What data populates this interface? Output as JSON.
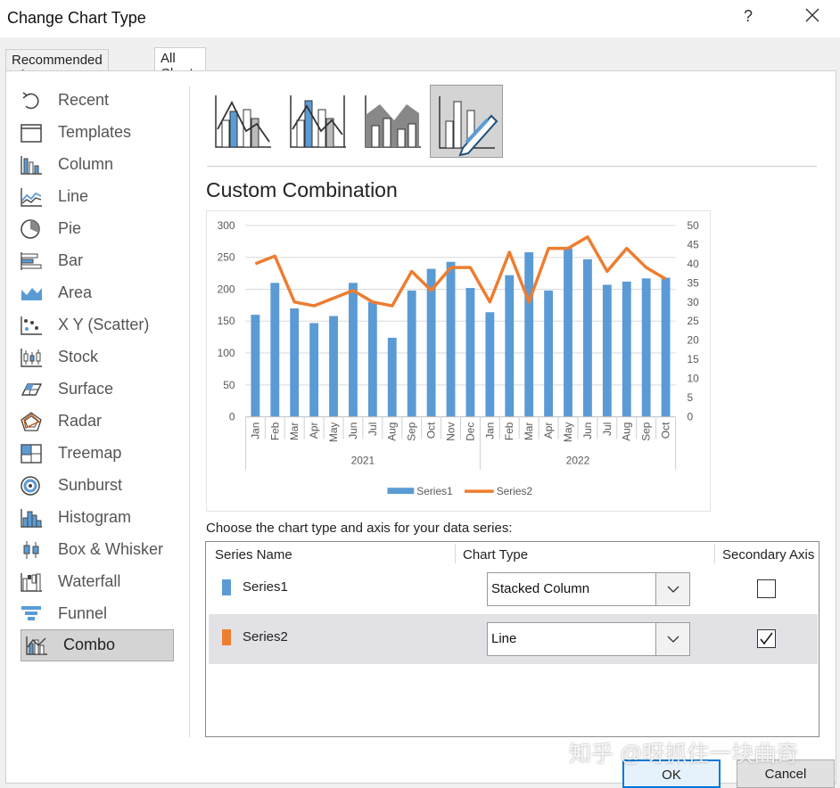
{
  "window": {
    "title": "Change Chart Type",
    "help": "?"
  },
  "tabs": [
    {
      "label": "Recommended Charts"
    },
    {
      "label": "All Charts"
    }
  ],
  "sidebar": {
    "items": [
      {
        "label": "Recent",
        "icon": "recent-icon"
      },
      {
        "label": "Templates",
        "icon": "templates-icon"
      },
      {
        "label": "Column",
        "icon": "column-chart-icon"
      },
      {
        "label": "Line",
        "icon": "line-chart-icon"
      },
      {
        "label": "Pie",
        "icon": "pie-chart-icon"
      },
      {
        "label": "Bar",
        "icon": "bar-chart-icon"
      },
      {
        "label": "Area",
        "icon": "area-chart-icon"
      },
      {
        "label": "X Y (Scatter)",
        "icon": "scatter-chart-icon"
      },
      {
        "label": "Stock",
        "icon": "stock-chart-icon"
      },
      {
        "label": "Surface",
        "icon": "surface-chart-icon"
      },
      {
        "label": "Radar",
        "icon": "radar-chart-icon"
      },
      {
        "label": "Treemap",
        "icon": "treemap-chart-icon"
      },
      {
        "label": "Sunburst",
        "icon": "sunburst-chart-icon"
      },
      {
        "label": "Histogram",
        "icon": "histogram-chart-icon"
      },
      {
        "label": "Box & Whisker",
        "icon": "box-whisker-chart-icon"
      },
      {
        "label": "Waterfall",
        "icon": "waterfall-chart-icon"
      },
      {
        "label": "Funnel",
        "icon": "funnel-chart-icon"
      },
      {
        "label": "Combo",
        "icon": "combo-chart-icon"
      }
    ],
    "selected": "Combo"
  },
  "combo": {
    "title": "Custom Combination",
    "choose_text": "Choose the chart type and axis for your data series:",
    "headers": {
      "name": "Series Name",
      "type": "Chart Type",
      "secondary": "Secondary Axis"
    },
    "rows": [
      {
        "name": "Series1",
        "type": "Stacked Column",
        "secondary": false,
        "color": "#5b9bd5"
      },
      {
        "name": "Series2",
        "type": "Line",
        "secondary": true,
        "color": "#ed7d31"
      }
    ]
  },
  "buttons": {
    "ok": "OK",
    "cancel": "Cancel"
  },
  "watermark": "知乎 @呀抓住一块曲奇",
  "chart_data": {
    "type": "bar",
    "categories": [
      "Jan",
      "Feb",
      "Mar",
      "Apr",
      "May",
      "Jun",
      "Jul",
      "Aug",
      "Sep",
      "Oct",
      "Nov",
      "Dec",
      "Jan",
      "Feb",
      "Mar",
      "Apr",
      "May",
      "Jun",
      "Jul",
      "Aug",
      "Sep",
      "Oct"
    ],
    "groups": [
      {
        "label": "2021",
        "count": 12
      },
      {
        "label": "2022",
        "count": 10
      }
    ],
    "series": [
      {
        "name": "Series1",
        "type": "column",
        "axis": "primary",
        "color": "#5b9bd5",
        "values": [
          160,
          210,
          170,
          147,
          158,
          210,
          180,
          124,
          198,
          232,
          243,
          202,
          164,
          222,
          258,
          198,
          264,
          247,
          207,
          212,
          217,
          218
        ]
      },
      {
        "name": "Series2",
        "type": "line",
        "axis": "secondary",
        "color": "#ed7d31",
        "values": [
          40,
          42,
          30,
          29,
          31,
          33,
          30,
          29,
          38,
          33,
          39,
          39,
          30,
          43,
          30,
          44,
          44,
          47,
          38,
          44,
          39,
          36
        ]
      }
    ],
    "y_ticks": [
      "300",
      "250",
      "200",
      "150",
      "100",
      "50",
      "0"
    ],
    "y2_ticks": [
      "50",
      "45",
      "40",
      "35",
      "30",
      "25",
      "20",
      "15",
      "10",
      "5",
      "0"
    ],
    "ylim": [
      0,
      300
    ],
    "y2lim": [
      0,
      50
    ],
    "grid": true,
    "legend": "bottom"
  }
}
